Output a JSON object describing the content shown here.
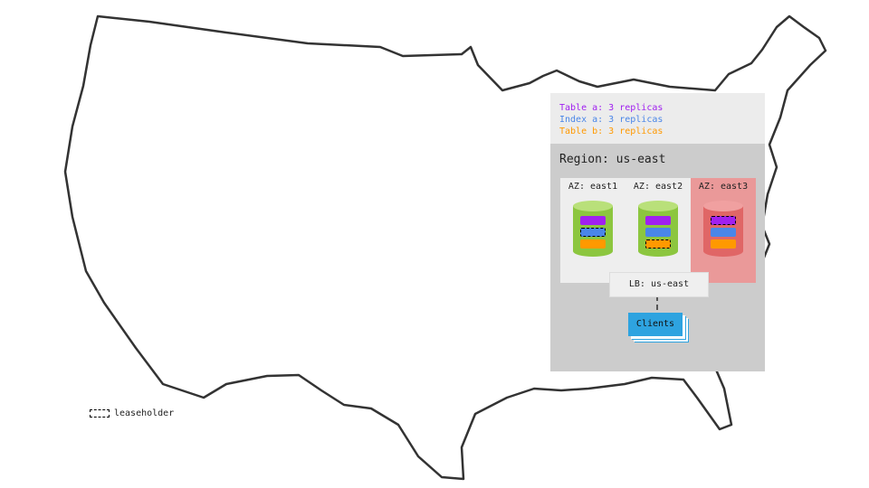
{
  "legend": {
    "items": [
      {
        "text": "Table a: 3 replicas",
        "color": "#a020f0"
      },
      {
        "text": "Index a: 3 replicas",
        "color": "#4a86e8"
      },
      {
        "text": "Table b: 3 replicas",
        "color": "#ff9900"
      }
    ]
  },
  "region": {
    "title": "Region: us-east",
    "zones": [
      {
        "label": "AZ: east1",
        "status": "healthy",
        "leaseholder": "Index a"
      },
      {
        "label": "AZ: east2",
        "status": "healthy",
        "leaseholder": "Table b"
      },
      {
        "label": "AZ: east3",
        "status": "failed",
        "leaseholder": "Table a"
      }
    ],
    "lb": "LB: us-east",
    "clients": "Clients"
  },
  "key": {
    "leaseholder": "leaseholder"
  },
  "colors": {
    "healthy": "#8cc63f",
    "failed": "#e06666",
    "failed_bg": "#ea9999",
    "clients": "#2ea3e0"
  }
}
